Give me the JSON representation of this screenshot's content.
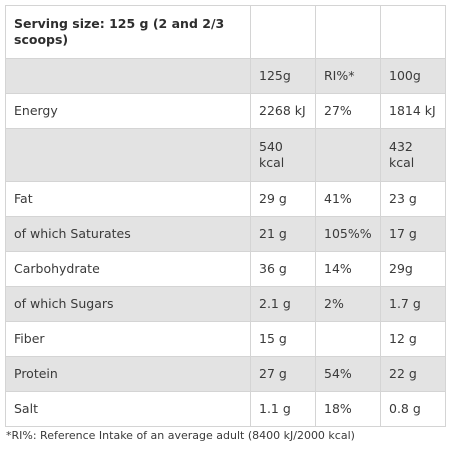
{
  "table": {
    "title": "Serving size: 125 g (2 and 2/3 scoops)",
    "rows": [
      {
        "name": "",
        "c1": "125g",
        "c2": "RI%*",
        "c3": "100g"
      },
      {
        "name": "Energy",
        "c1": "2268 kJ",
        "c2": "27%",
        "c3": "1814 kJ"
      },
      {
        "name": "",
        "c1": "540 kcal",
        "c2": "",
        "c3": "432 kcal"
      },
      {
        "name": "Fat",
        "c1": "29 g",
        "c2": "41%",
        "c3": "23 g"
      },
      {
        "name": "of which Saturates",
        "c1": "21 g",
        "c2": "105%%",
        "c3": "17 g"
      },
      {
        "name": "Carbohydrate",
        "c1": "36 g",
        "c2": "14%",
        "c3": "29g"
      },
      {
        "name": "of which Sugars",
        "c1": "2.1 g",
        "c2": "2%",
        "c3": "1.7 g"
      },
      {
        "name": "Fiber",
        "c1": "15 g",
        "c2": "",
        "c3": "12 g"
      },
      {
        "name": "Protein",
        "c1": "27 g",
        "c2": "54%",
        "c3": "22 g"
      },
      {
        "name": "Salt",
        "c1": "1.1 g",
        "c2": "18%",
        "c3": "0.8 g"
      }
    ]
  },
  "footnote": "*RI%: Reference Intake of an average adult (8400 kJ/2000 kcal)"
}
